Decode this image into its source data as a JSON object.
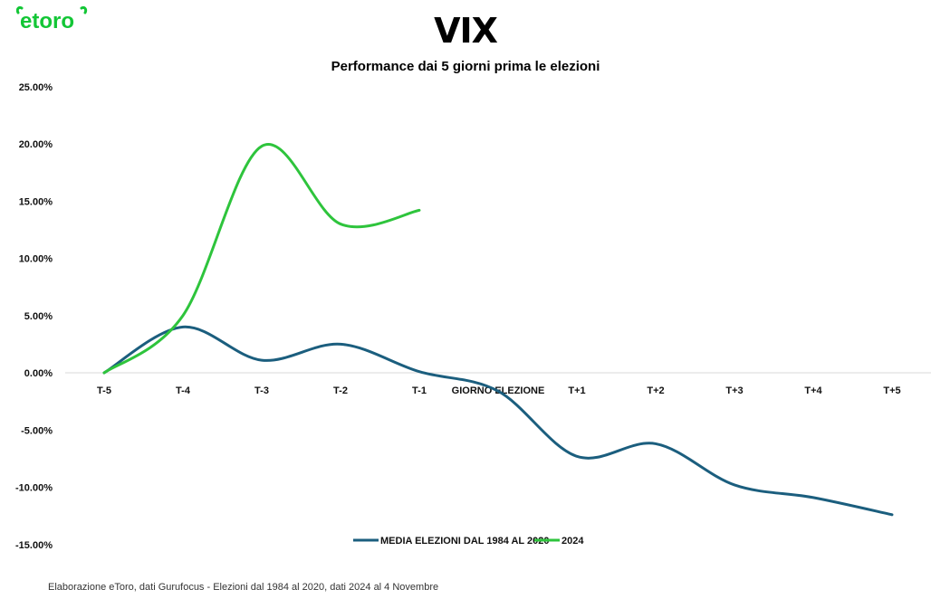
{
  "brand": {
    "logo_text": "etoro",
    "logo_color": "#13c636"
  },
  "title": "VIX",
  "subtitle": "Performance dai 5 giorni prima le elezioni",
  "footer": "Elaborazione eToro, dati Gurufocus - Elezioni dal 1984 al 2020, dati 2024 al 4 Novembre",
  "chart_data": {
    "type": "line",
    "categories": [
      "T-5",
      "T-4",
      "T-3",
      "T-2",
      "T-1",
      "GIORNO ELEZIONE",
      "T+1",
      "T+2",
      "T+3",
      "T+4",
      "T+5"
    ],
    "ylim": [
      -15,
      25
    ],
    "yticks": [
      "25.00%",
      "20.00%",
      "15.00%",
      "10.00%",
      "5.00%",
      "0.00%",
      "-5.00%",
      "-10.00%",
      "-15.00%"
    ],
    "ytick_values": [
      25,
      20,
      15,
      10,
      5,
      0,
      -5,
      -10,
      -15
    ],
    "grid": false,
    "legend_position": "bottom",
    "series": [
      {
        "name": "MEDIA ELEZIONI DAL 1984 AL 2020",
        "color": "#1b5e7e",
        "values": [
          0.0,
          4.0,
          1.1,
          2.5,
          0.1,
          -1.6,
          -7.3,
          -6.2,
          -9.8,
          -10.9,
          -12.4
        ]
      },
      {
        "name": "2024",
        "color": "#2ec43c",
        "values": [
          0.0,
          5.0,
          19.8,
          13.0,
          14.2,
          null,
          null,
          null,
          null,
          null,
          null
        ]
      }
    ]
  }
}
